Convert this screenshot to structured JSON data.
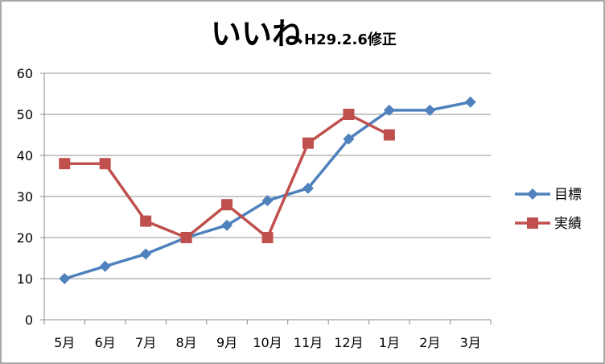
{
  "chart_data": {
    "type": "line",
    "title": "いいね",
    "subtitle": "H29.2.6修正",
    "categories": [
      "5月",
      "6月",
      "7月",
      "8月",
      "9月",
      "10月",
      "11月",
      "12月",
      "1月",
      "2月",
      "3月"
    ],
    "ylim": [
      0,
      60
    ],
    "yticks": [
      0,
      10,
      20,
      30,
      40,
      50,
      60
    ],
    "grid": true,
    "legend_position": "right",
    "series": [
      {
        "name": "目標",
        "color": "#4f81bd",
        "marker": "diamond",
        "values": [
          10,
          13,
          16,
          20,
          23,
          29,
          32,
          44,
          51,
          51,
          53
        ]
      },
      {
        "name": "実績",
        "color": "#c0504d",
        "marker": "square",
        "values": [
          38,
          38,
          24,
          20,
          28,
          20,
          43,
          50,
          45,
          null,
          null
        ]
      }
    ]
  }
}
